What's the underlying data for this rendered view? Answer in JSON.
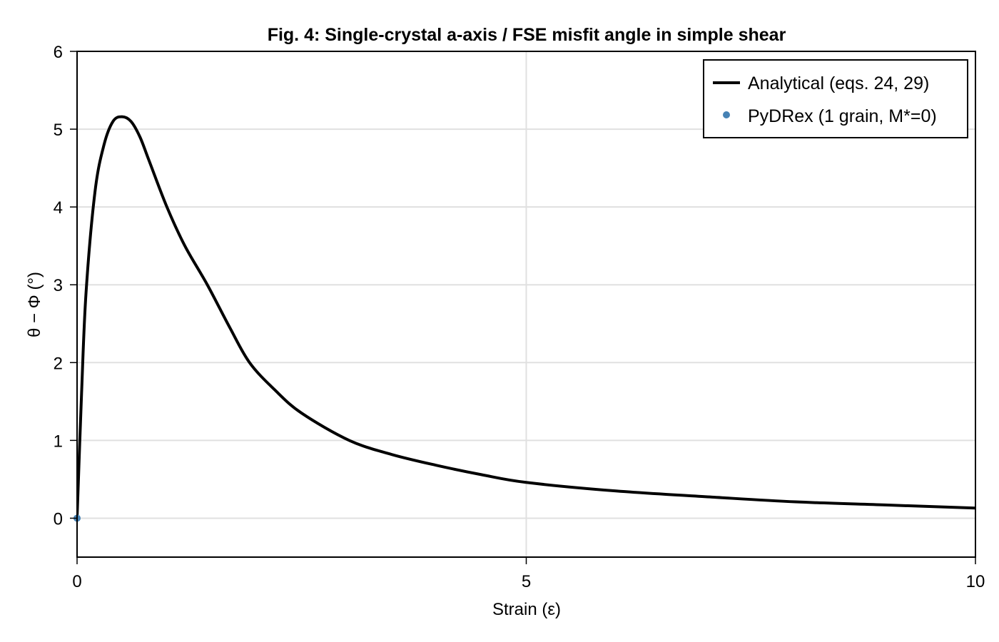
{
  "chart_data": {
    "type": "line",
    "title": "Fig. 4: Single-crystal a-axis / FSE misfit angle in simple shear",
    "xlabel": "Strain (ε)",
    "ylabel": "θ − Φ (°)",
    "xlim": [
      0,
      10
    ],
    "ylim": [
      -0.5,
      6
    ],
    "xticks": [
      0,
      5,
      10
    ],
    "xtick_labels": [
      "0",
      "5",
      "10"
    ],
    "yticks": [
      0,
      1,
      2,
      3,
      4,
      5,
      6
    ],
    "ytick_labels": [
      "0",
      "1",
      "2",
      "3",
      "4",
      "5",
      "6"
    ],
    "grid": true,
    "legend_position": "upper right",
    "series": [
      {
        "name": "Analytical (eqs. 24, 29)",
        "style": "line",
        "color": "#000000",
        "x": [
          0,
          0.05,
          0.1,
          0.2,
          0.3,
          0.4,
          0.5,
          0.6,
          0.7,
          0.8,
          1.0,
          1.2,
          1.45,
          1.7,
          1.92,
          2.2,
          2.5,
          3.03,
          3.5,
          4.0,
          4.5,
          5.0,
          6.0,
          7.09,
          8.0,
          9.0,
          10.0
        ],
        "y": [
          0,
          1.6,
          2.9,
          4.2,
          4.8,
          5.1,
          5.16,
          5.1,
          4.9,
          4.6,
          4.0,
          3.5,
          3.0,
          2.45,
          2.0,
          1.65,
          1.35,
          1.0,
          0.82,
          0.68,
          0.56,
          0.46,
          0.35,
          0.27,
          0.21,
          0.17,
          0.13
        ]
      },
      {
        "name": "PyDRex (1 grain, M*=0)",
        "style": "scatter",
        "color": "#4682b4",
        "x": [
          0
        ],
        "y": [
          0
        ]
      }
    ]
  }
}
